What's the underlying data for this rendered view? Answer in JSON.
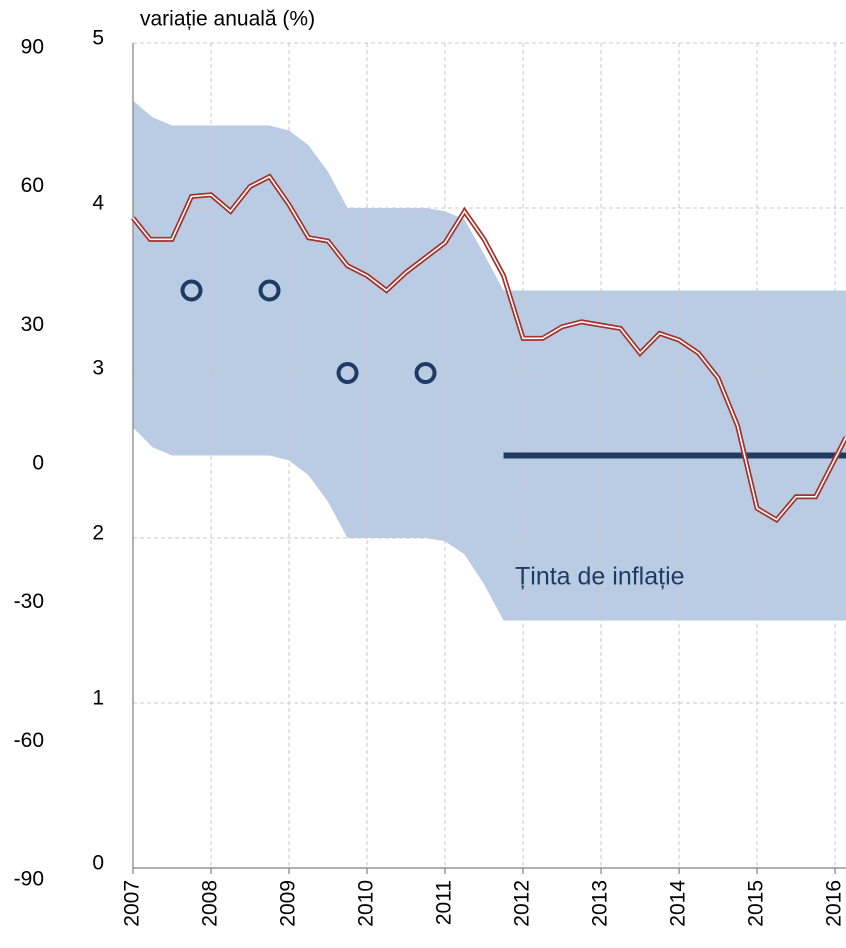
{
  "chart_data": {
    "type": "line",
    "ylabel": "variație anuală (%)",
    "annotation": "Ținta de inflație",
    "xlim": [
      2007,
      2016.14
    ],
    "xticks": [
      2007,
      2008,
      2009,
      2010,
      2011,
      2012,
      2013,
      2014,
      2015,
      2016
    ],
    "ylim": [
      0,
      5
    ],
    "yticks": [
      0,
      1,
      2,
      3,
      4,
      5
    ],
    "y2lim": [
      -90,
      90
    ],
    "y2ticks": [
      -90,
      -60,
      -30,
      0,
      30,
      60,
      90
    ],
    "grid": true,
    "band": {
      "color": "#b9cce4",
      "x": [
        2007,
        2007.25,
        2007.5,
        2008.75,
        2009,
        2009.25,
        2009.5,
        2009.75,
        2010.75,
        2011,
        2011.25,
        2011.5,
        2011.75,
        2016.14
      ],
      "upper": [
        4.65,
        4.55,
        4.5,
        4.5,
        4.47,
        4.38,
        4.22,
        4.0,
        4.0,
        3.98,
        3.93,
        3.72,
        3.5,
        3.5
      ],
      "lower": [
        2.67,
        2.55,
        2.5,
        2.5,
        2.47,
        2.38,
        2.22,
        2.0,
        2.0,
        1.98,
        1.9,
        1.72,
        1.5,
        1.5
      ]
    },
    "series": [
      {
        "color": "#a5312a",
        "x": [
          2007,
          2007.22,
          2007.5,
          2007.75,
          2008,
          2008.25,
          2008.5,
          2008.75,
          2009,
          2009.25,
          2009.5,
          2009.75,
          2010,
          2010.25,
          2010.5,
          2010.75,
          2011,
          2011.25,
          2011.5,
          2011.75,
          2012,
          2012.25,
          2012.5,
          2012.75,
          2013,
          2013.25,
          2013.5,
          2013.75,
          2014,
          2014.25,
          2014.5,
          2014.75,
          2015,
          2015.25,
          2015.5,
          2015.75,
          2016,
          2016.14
        ],
        "values": [
          3.94,
          3.81,
          3.81,
          4.07,
          4.08,
          3.98,
          4.13,
          4.19,
          4.02,
          3.82,
          3.8,
          3.65,
          3.59,
          3.5,
          3.61,
          3.7,
          3.79,
          3.98,
          3.81,
          3.59,
          3.21,
          3.21,
          3.28,
          3.31,
          3.29,
          3.27,
          3.12,
          3.24,
          3.2,
          3.12,
          2.97,
          2.68,
          2.18,
          2.11,
          2.25,
          2.25,
          2.48,
          2.61
        ]
      }
    ],
    "target": {
      "color": "#1f3b64",
      "x": [
        2011.75,
        2016.14
      ],
      "values": [
        2.5,
        2.5
      ]
    },
    "points": {
      "color": "#1f3b64",
      "x": [
        2007.75,
        2008.75,
        2009.75,
        2010.75
      ],
      "values": [
        3.5,
        3.5,
        3.0,
        3.0
      ]
    }
  }
}
